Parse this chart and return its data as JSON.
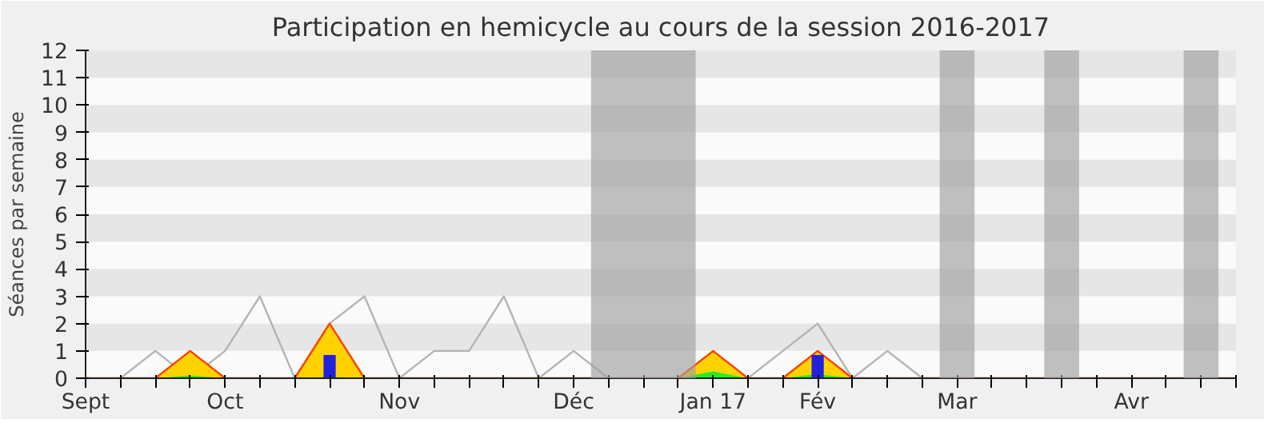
{
  "chart_data": {
    "type": "area",
    "title": "Participation en hemicycle au cours de la session 2016-2017",
    "ylabel": "Séances par semaine",
    "categories": [
      "Sept",
      null,
      null,
      null,
      "Oct",
      null,
      null,
      null,
      null,
      "Nov",
      null,
      null,
      null,
      null,
      "Déc",
      null,
      null,
      null,
      "Jan 17",
      null,
      null,
      "Fév",
      null,
      null,
      null,
      "Mar",
      null,
      null,
      null,
      null,
      "Avr",
      null,
      null,
      null
    ],
    "series": [
      {
        "type": "line",
        "color": "#b4b4b4",
        "values": [
          null,
          0,
          1,
          0,
          1,
          3,
          0,
          2,
          3,
          0,
          1,
          1,
          3,
          0,
          1,
          0,
          null,
          null,
          null,
          0,
          1,
          2,
          0,
          1,
          0,
          null,
          null,
          null,
          null,
          null,
          null,
          null,
          null,
          null
        ]
      },
      {
        "color": "#ffd200",
        "values": [
          0,
          0,
          0,
          1,
          0,
          0,
          0,
          2,
          0,
          0,
          0,
          0,
          0,
          0,
          0,
          0,
          0,
          0,
          1,
          0,
          0,
          1,
          0,
          0,
          0,
          0,
          0,
          0,
          0,
          0,
          0,
          0,
          0,
          0
        ]
      },
      {
        "color": "#22ee22",
        "values": [
          0,
          0,
          0,
          0.1,
          0,
          0,
          0,
          0.05,
          0,
          0,
          0,
          0,
          0,
          0,
          0,
          0,
          0,
          0,
          0.25,
          0,
          0,
          0.15,
          0,
          0,
          0,
          0,
          0,
          0,
          0,
          0,
          0,
          0,
          0,
          0
        ]
      },
      {
        "type": "bar",
        "color": "#2222dd",
        "values": [
          null,
          null,
          null,
          null,
          null,
          null,
          null,
          0.85,
          null,
          null,
          null,
          null,
          null,
          null,
          null,
          null,
          null,
          null,
          null,
          null,
          null,
          0.85,
          null,
          null,
          null,
          null,
          null,
          null,
          null,
          null,
          null,
          null,
          null,
          null
        ]
      }
    ],
    "ylim": [
      0,
      12
    ],
    "yticks": [
      0,
      1,
      2,
      3,
      4,
      5,
      6,
      7,
      8,
      9,
      10,
      11,
      12
    ],
    "grid": false
  }
}
